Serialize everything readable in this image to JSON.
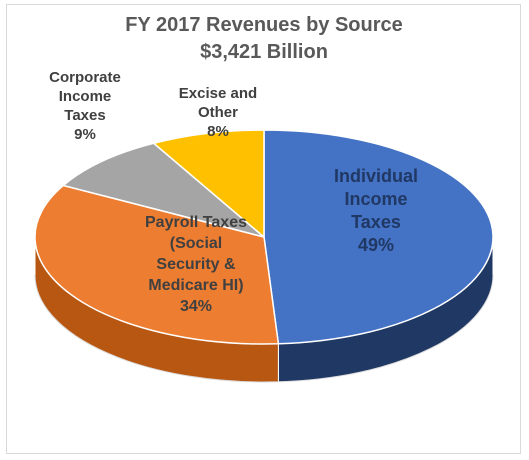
{
  "chart_data": {
    "type": "pie",
    "title_lines": [
      "FY 2017 Revenues by Source",
      "$3,421 Billion"
    ],
    "slices": [
      {
        "label_lines": [
          "Individual",
          "Income",
          "Taxes",
          "49%"
        ],
        "value": 49,
        "color": "#4472c4",
        "side_color": "#1f3864",
        "label_color": "#203864"
      },
      {
        "label_lines": [
          "Payroll Taxes",
          "(Social",
          "Security &",
          "Medicare HI)",
          "34%"
        ],
        "value": 34,
        "color": "#ed7d31",
        "side_color": "#b85712",
        "label_color": "#404040"
      },
      {
        "label_lines": [
          "Corporate",
          "Income",
          "Taxes",
          "9%"
        ],
        "value": 9,
        "color": "#a5a5a5",
        "side_color": "#7a7a7a",
        "label_color": "#404040"
      },
      {
        "label_lines": [
          "Excise and",
          "Other",
          "8%"
        ],
        "value": 8,
        "color": "#ffc000",
        "side_color": "#bf9000",
        "label_color": "#404040"
      }
    ]
  }
}
